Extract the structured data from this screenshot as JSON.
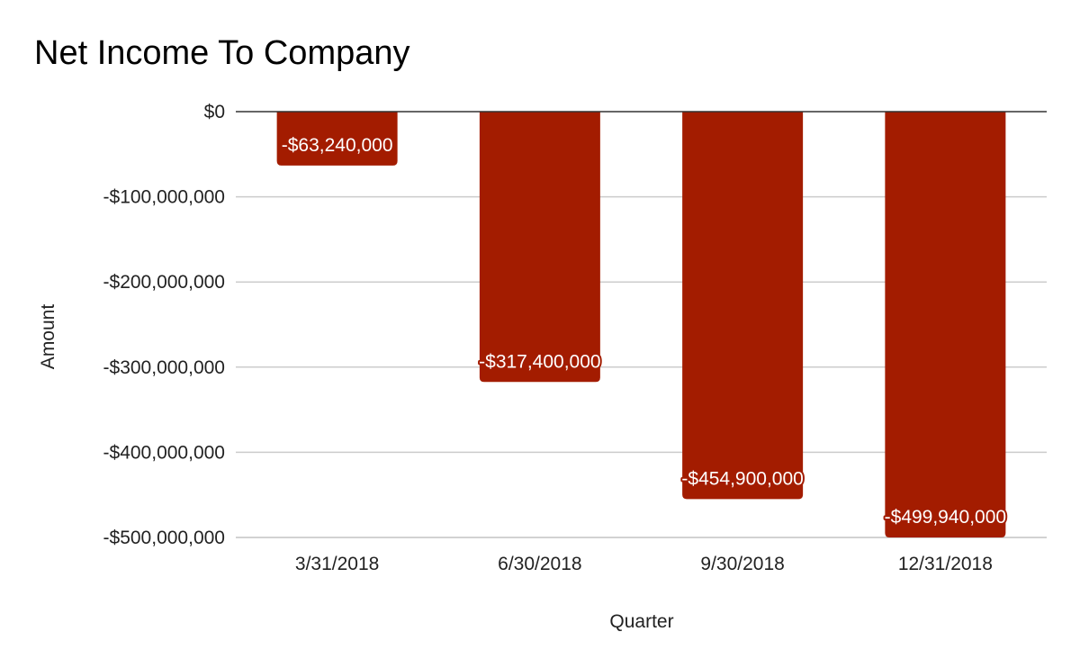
{
  "chart_data": {
    "type": "bar",
    "title": "Net Income To Company",
    "xlabel": "Quarter",
    "ylabel": "Amount",
    "categories": [
      "3/31/2018",
      "6/30/2018",
      "9/30/2018",
      "12/31/2018"
    ],
    "values": [
      -63240000,
      -317400000,
      -454900000,
      -499940000
    ],
    "data_labels": [
      "-$63,240,000",
      "-$317,400,000",
      "-$454,900,000",
      "-$499,940,000"
    ],
    "ylim": [
      -500000000,
      0
    ],
    "yticks": [
      0,
      -100000000,
      -200000000,
      -300000000,
      -400000000,
      -500000000
    ],
    "ytick_labels": [
      "$0",
      "-$100,000,000",
      "-$200,000,000",
      "-$300,000,000",
      "-$400,000,000",
      "-$500,000,000"
    ],
    "grid": true,
    "legend": "none",
    "bar_color": "#a31c00"
  }
}
